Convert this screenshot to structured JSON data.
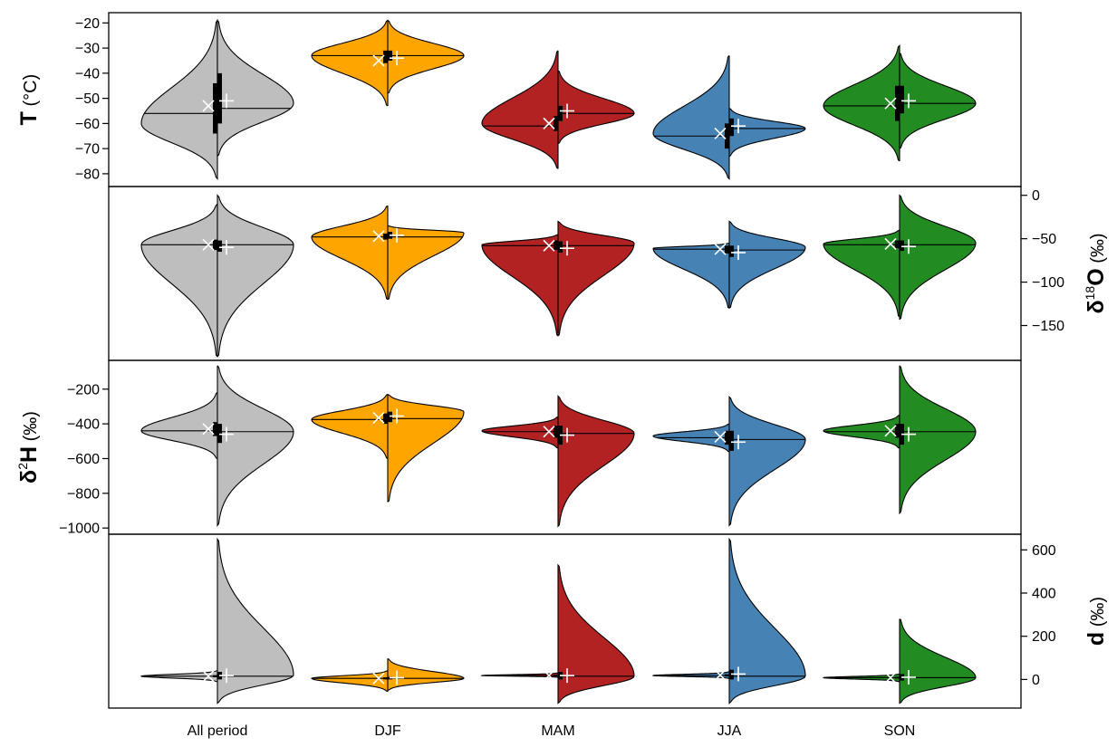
{
  "chart_data": {
    "type": "split-violin",
    "categories": [
      "All period",
      "DJF",
      "MAM",
      "JJA",
      "SON"
    ],
    "colors": [
      "#bebebe",
      "#ffa500",
      "#b22222",
      "#4682b4",
      "#228b22"
    ],
    "outline_color": "#000000",
    "mean_marker_left": "×",
    "mean_marker_right": "+",
    "panels": [
      {
        "id": "T",
        "ylabel": {
          "main": "T",
          "sup": "",
          "unit": " (°C)"
        },
        "axis_side": "left",
        "ylim": [
          -84,
          -17
        ],
        "ticks": [
          -80,
          -70,
          -60,
          -50,
          -40,
          -30,
          -20
        ],
        "violins": [
          {
            "left": {
              "min": -82,
              "max": -19,
              "mode": -60,
              "median": -56,
              "mean": -53,
              "q1": -64,
              "q3": -44
            },
            "right": {
              "min": -73,
              "max": -19,
              "mode": -52,
              "median": -54,
              "mean": -51,
              "q1": -60,
              "q3": -40
            }
          },
          {
            "left": {
              "min": -53,
              "max": -19,
              "mode": -33,
              "median": -33,
              "mean": -35,
              "q1": -36,
              "q3": -31
            },
            "right": {
              "min": -48,
              "max": -19,
              "mode": -33,
              "median": -33,
              "mean": -34,
              "q1": -35,
              "q3": -31
            }
          },
          {
            "left": {
              "min": -78,
              "max": -31,
              "mode": -60,
              "median": -61,
              "mean": -60,
              "q1": -63,
              "q3": -57
            },
            "right": {
              "min": -68,
              "max": -39,
              "mode": -56,
              "median": -56,
              "mean": -55,
              "q1": -59,
              "q3": -53
            }
          },
          {
            "left": {
              "min": -82,
              "max": -33,
              "mode": -64,
              "median": -65,
              "mean": -64,
              "q1": -70,
              "q3": -60
            },
            "right": {
              "min": -73,
              "max": -54,
              "mode": -62,
              "median": -62,
              "mean": -61,
              "q1": -65,
              "q3": -58
            }
          },
          {
            "left": {
              "min": -75,
              "max": -29,
              "mode": -53,
              "median": -53,
              "mean": -52,
              "q1": -59,
              "q3": -45
            },
            "right": {
              "min": -70,
              "max": -32,
              "mode": -52,
              "median": -52,
              "mean": -51,
              "q1": -56,
              "q3": -45
            }
          }
        ]
      },
      {
        "id": "d18O",
        "ylabel": {
          "main": "δ",
          "sup": "18",
          "unit": "O (‰)"
        },
        "axis_side": "right",
        "ylim": [
          -187,
          7
        ],
        "ticks": [
          -150,
          -100,
          -50,
          0
        ],
        "violins": [
          {
            "left": {
              "min": -186,
              "max": -10,
              "mode": -57,
              "median": -57,
              "mean": -57,
              "q1": -63,
              "q3": -51
            },
            "right": {
              "min": -186,
              "max": 0,
              "mode": -57,
              "median": -57,
              "mean": -60,
              "q1": -65,
              "q3": -52
            }
          },
          {
            "left": {
              "min": -120,
              "max": -12,
              "mode": -48,
              "median": -48,
              "mean": -47,
              "q1": -51,
              "q3": -44
            },
            "right": {
              "min": -120,
              "max": -35,
              "mode": -43,
              "median": -48,
              "mean": -46,
              "q1": -50,
              "q3": -42
            }
          },
          {
            "left": {
              "min": -162,
              "max": -45,
              "mode": -57,
              "median": -58,
              "mean": -58,
              "q1": -63,
              "q3": -52
            },
            "right": {
              "min": -162,
              "max": -30,
              "mode": -55,
              "median": -58,
              "mean": -61,
              "q1": -66,
              "q3": -53
            }
          },
          {
            "left": {
              "min": -130,
              "max": -55,
              "mode": -61,
              "median": -62,
              "mean": -62,
              "q1": -67,
              "q3": -58
            },
            "right": {
              "min": -130,
              "max": -30,
              "mode": -60,
              "median": -63,
              "mean": -66,
              "q1": -71,
              "q3": -58
            }
          },
          {
            "left": {
              "min": -140,
              "max": -40,
              "mode": -56,
              "median": -57,
              "mean": -56,
              "q1": -61,
              "q3": -52
            },
            "right": {
              "min": -143,
              "max": 0,
              "mode": -55,
              "median": -57,
              "mean": -59,
              "q1": -64,
              "q3": -52
            }
          }
        ]
      },
      {
        "id": "d2H",
        "ylabel": {
          "main": "δ",
          "sup": "2",
          "unit": "H (‰)"
        },
        "axis_side": "left",
        "ylim": [
          -1020,
          -50
        ],
        "ticks": [
          -1000,
          -800,
          -600,
          -400,
          -200
        ],
        "violins": [
          {
            "left": {
              "min": -600,
              "max": -220,
              "mode": -440,
              "median": -440,
              "mean": -430,
              "q1": -470,
              "q3": -390
            },
            "right": {
              "min": -985,
              "max": -65,
              "mode": -445,
              "median": -445,
              "mean": -460,
              "q1": -510,
              "q3": -400
            }
          },
          {
            "left": {
              "min": -600,
              "max": -230,
              "mode": -375,
              "median": -375,
              "mean": -365,
              "q1": -400,
              "q3": -340
            },
            "right": {
              "min": -850,
              "max": -230,
              "mode": -330,
              "median": -370,
              "mean": -355,
              "q1": -390,
              "q3": -330
            }
          },
          {
            "left": {
              "min": -540,
              "max": -360,
              "mode": -440,
              "median": -445,
              "mean": -445,
              "q1": -480,
              "q3": -410
            },
            "right": {
              "min": -990,
              "max": -240,
              "mode": -455,
              "median": -455,
              "mean": -465,
              "q1": -520,
              "q3": -410
            }
          },
          {
            "left": {
              "min": -560,
              "max": -400,
              "mode": -470,
              "median": -480,
              "mean": -475,
              "q1": -520,
              "q3": -440
            },
            "right": {
              "min": -985,
              "max": -245,
              "mode": -490,
              "median": -490,
              "mean": -505,
              "q1": -555,
              "q3": -440
            }
          },
          {
            "left": {
              "min": -540,
              "max": -350,
              "mode": -440,
              "median": -445,
              "mean": -440,
              "q1": -480,
              "q3": -400
            },
            "right": {
              "min": -915,
              "max": -65,
              "mode": -445,
              "median": -445,
              "mean": -460,
              "q1": -520,
              "q3": -400
            }
          }
        ]
      },
      {
        "id": "d",
        "ylabel": {
          "main": "d",
          "sup": "",
          "unit": " (‰)"
        },
        "axis_side": "right",
        "ylim": [
          -120,
          660
        ],
        "ticks": [
          0,
          200,
          400,
          600
        ],
        "violins": [
          {
            "left": {
              "min": -10,
              "max": 40,
              "mode": 15,
              "median": 15,
              "mean": 15,
              "q1": 10,
              "q3": 20
            },
            "right": {
              "min": -110,
              "max": 650,
              "mode": 20,
              "median": 15,
              "mean": 18,
              "q1": 0,
              "q3": 35
            }
          },
          {
            "left": {
              "min": -55,
              "max": 40,
              "mode": 5,
              "median": 5,
              "mean": 5,
              "q1": 0,
              "q3": 10
            },
            "right": {
              "min": -50,
              "max": 95,
              "mode": 5,
              "median": 5,
              "mean": 8,
              "q1": 0,
              "q3": 12
            }
          },
          {
            "left": {
              "min": 10,
              "max": 30,
              "mode": 18,
              "median": 18,
              "mean": 18,
              "q1": 14,
              "q3": 22
            },
            "right": {
              "min": -110,
              "max": 530,
              "mode": 15,
              "median": 15,
              "mean": 18,
              "q1": 0,
              "q3": 35
            }
          },
          {
            "left": {
              "min": 5,
              "max": 35,
              "mode": 18,
              "median": 18,
              "mean": 20,
              "q1": 14,
              "q3": 24
            },
            "right": {
              "min": -110,
              "max": 650,
              "mode": 15,
              "median": 15,
              "mean": 25,
              "q1": 0,
              "q3": 45
            }
          },
          {
            "left": {
              "min": -10,
              "max": 25,
              "mode": 8,
              "median": 8,
              "mean": 8,
              "q1": 4,
              "q3": 12
            },
            "right": {
              "min": -110,
              "max": 280,
              "mode": 8,
              "median": 8,
              "mean": 10,
              "q1": -5,
              "q3": 25
            }
          }
        ]
      }
    ]
  }
}
